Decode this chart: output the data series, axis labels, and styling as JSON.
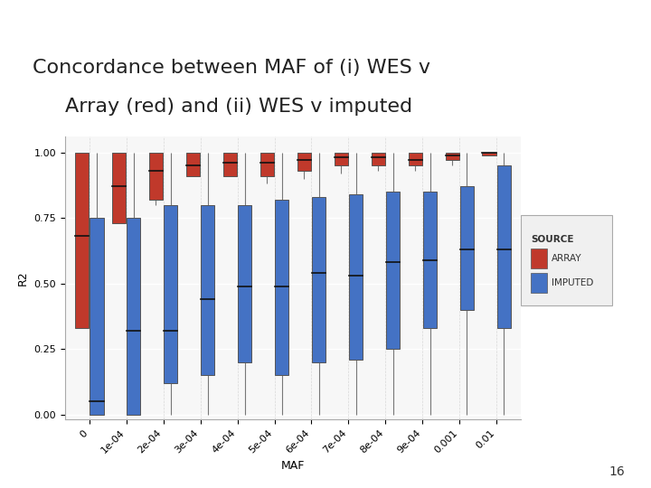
{
  "title": "Concordance between MAF of (i) WES v\n  Array (red) and (ii) WES v imputed",
  "xlabel": "MAF",
  "ylabel": "R2",
  "categories": [
    "0",
    "1e-04",
    "2e-04",
    "3e-04",
    "4e-04",
    "5e-04",
    "6e-04",
    "7e-04",
    "8e-04",
    "9e-04",
    "0.001",
    "0.01"
  ],
  "array_boxes": [
    {
      "q1": 0.33,
      "median": 0.68,
      "q3": 1.0,
      "whislo": 0.33,
      "whishi": 1.0
    },
    {
      "q1": 0.73,
      "median": 0.87,
      "q3": 1.0,
      "whislo": 0.73,
      "whishi": 1.0
    },
    {
      "q1": 0.82,
      "median": 0.93,
      "q3": 1.0,
      "whislo": 0.8,
      "whishi": 1.0
    },
    {
      "q1": 0.91,
      "median": 0.95,
      "q3": 1.0,
      "whislo": 0.91,
      "whishi": 1.0
    },
    {
      "q1": 0.91,
      "median": 0.96,
      "q3": 1.0,
      "whislo": 0.91,
      "whishi": 1.0
    },
    {
      "q1": 0.91,
      "median": 0.96,
      "q3": 1.0,
      "whislo": 0.88,
      "whishi": 1.0
    },
    {
      "q1": 0.93,
      "median": 0.97,
      "q3": 1.0,
      "whislo": 0.9,
      "whishi": 1.0
    },
    {
      "q1": 0.95,
      "median": 0.98,
      "q3": 1.0,
      "whislo": 0.92,
      "whishi": 1.0
    },
    {
      "q1": 0.95,
      "median": 0.98,
      "q3": 1.0,
      "whislo": 0.93,
      "whishi": 1.0
    },
    {
      "q1": 0.95,
      "median": 0.97,
      "q3": 1.0,
      "whislo": 0.93,
      "whishi": 1.0
    },
    {
      "q1": 0.97,
      "median": 0.99,
      "q3": 1.0,
      "whislo": 0.95,
      "whishi": 1.0
    },
    {
      "q1": 0.99,
      "median": 1.0,
      "q3": 1.0,
      "whislo": 0.99,
      "whishi": 1.0
    }
  ],
  "imputed_boxes": [
    {
      "q1": 0.0,
      "median": 0.05,
      "q3": 0.75,
      "whislo": 0.0,
      "whishi": 1.0
    },
    {
      "q1": 0.0,
      "median": 0.32,
      "q3": 0.75,
      "whislo": 0.0,
      "whishi": 1.0
    },
    {
      "q1": 0.12,
      "median": 0.32,
      "q3": 0.8,
      "whislo": 0.0,
      "whishi": 1.0
    },
    {
      "q1": 0.15,
      "median": 0.44,
      "q3": 0.8,
      "whislo": 0.0,
      "whishi": 1.0
    },
    {
      "q1": 0.2,
      "median": 0.49,
      "q3": 0.8,
      "whislo": 0.0,
      "whishi": 1.0
    },
    {
      "q1": 0.15,
      "median": 0.49,
      "q3": 0.82,
      "whislo": 0.0,
      "whishi": 1.0
    },
    {
      "q1": 0.2,
      "median": 0.54,
      "q3": 0.83,
      "whislo": 0.0,
      "whishi": 1.0
    },
    {
      "q1": 0.21,
      "median": 0.53,
      "q3": 0.84,
      "whislo": 0.0,
      "whishi": 1.0
    },
    {
      "q1": 0.25,
      "median": 0.58,
      "q3": 0.85,
      "whislo": 0.0,
      "whishi": 1.0
    },
    {
      "q1": 0.33,
      "median": 0.59,
      "q3": 0.85,
      "whislo": 0.0,
      "whishi": 1.0
    },
    {
      "q1": 0.4,
      "median": 0.63,
      "q3": 0.87,
      "whislo": 0.0,
      "whishi": 1.0
    },
    {
      "q1": 0.33,
      "median": 0.63,
      "q3": 0.95,
      "whislo": 0.0,
      "whishi": 1.0
    }
  ],
  "array_color": "#C0392B",
  "imputed_color": "#4472C4",
  "background_color": "#FFFFFF",
  "plot_bg_color": "#F7F7F7",
  "grid_color": "#FFFFFF",
  "legend_bg": "#F0F0F0",
  "box_width": 0.38
}
